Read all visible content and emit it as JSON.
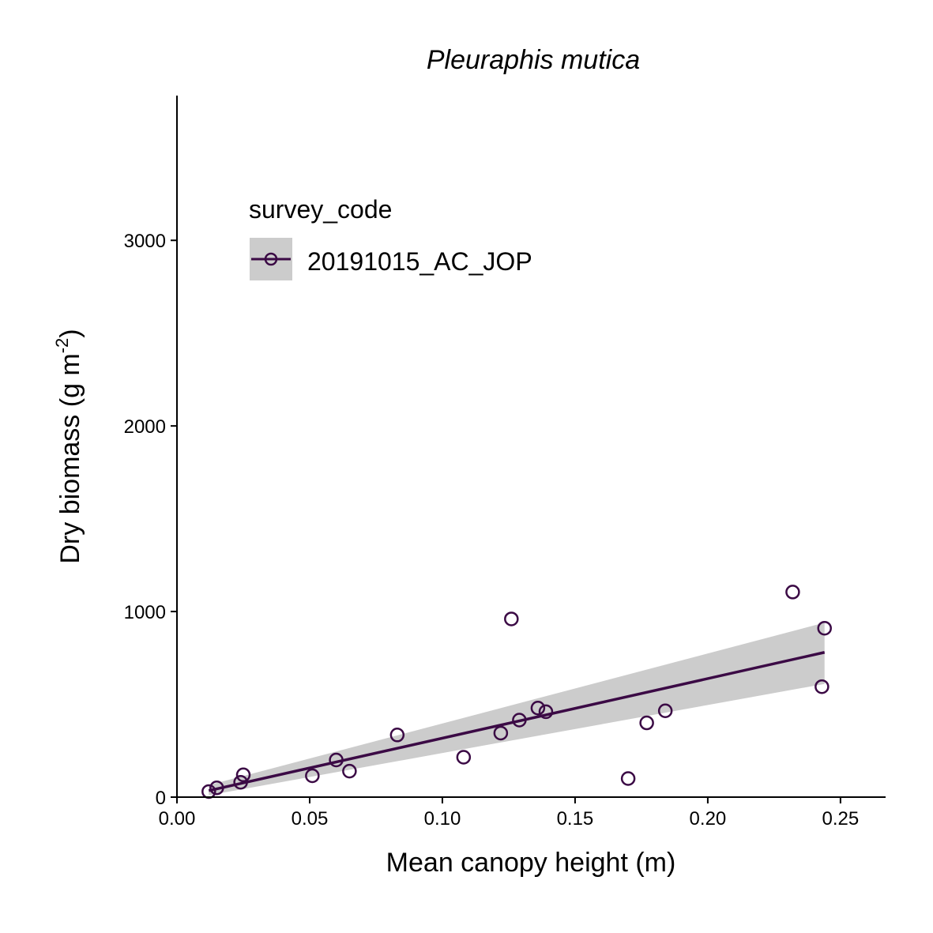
{
  "chart_data": {
    "type": "scatter",
    "title": "Pleuraphis mutica",
    "xlabel": "Mean canopy height (m)",
    "ylabel_main": "Dry biomass (g m",
    "ylabel_sup": "-2",
    "ylabel_close": ")",
    "xlim": [
      0.0,
      0.267
    ],
    "ylim": [
      0,
      3780
    ],
    "x_ticks": [
      0.0,
      0.05,
      0.1,
      0.15,
      0.2,
      0.25
    ],
    "x_tick_labels": [
      "0.00",
      "0.05",
      "0.10",
      "0.15",
      "0.20",
      "0.25"
    ],
    "y_ticks": [
      0,
      1000,
      2000,
      3000
    ],
    "y_tick_labels": [
      "0",
      "1000",
      "2000",
      "3000"
    ],
    "grid": false,
    "legend": {
      "title": "survey_code",
      "placement": "top-left",
      "entries": [
        "20191015_AC_JOP"
      ]
    },
    "colors": {
      "series": "#3b0a45",
      "ribbon": "#cccccc"
    },
    "series": [
      {
        "name": "20191015_AC_JOP",
        "points": [
          {
            "x": 0.012,
            "y": 30
          },
          {
            "x": 0.015,
            "y": 50
          },
          {
            "x": 0.024,
            "y": 80
          },
          {
            "x": 0.025,
            "y": 120
          },
          {
            "x": 0.051,
            "y": 115
          },
          {
            "x": 0.06,
            "y": 200
          },
          {
            "x": 0.065,
            "y": 140
          },
          {
            "x": 0.083,
            "y": 335
          },
          {
            "x": 0.108,
            "y": 215
          },
          {
            "x": 0.122,
            "y": 345
          },
          {
            "x": 0.126,
            "y": 960
          },
          {
            "x": 0.129,
            "y": 415
          },
          {
            "x": 0.136,
            "y": 480
          },
          {
            "x": 0.139,
            "y": 460
          },
          {
            "x": 0.17,
            "y": 100
          },
          {
            "x": 0.177,
            "y": 400
          },
          {
            "x": 0.184,
            "y": 465
          },
          {
            "x": 0.232,
            "y": 1105
          },
          {
            "x": 0.243,
            "y": 595
          },
          {
            "x": 0.244,
            "y": 910
          }
        ],
        "fit": {
          "x": [
            0.012,
            0.244
          ],
          "y": [
            35,
            780
          ],
          "ci_lower": [
            10,
            610
          ],
          "ci_upper": [
            65,
            940
          ]
        }
      }
    ]
  }
}
